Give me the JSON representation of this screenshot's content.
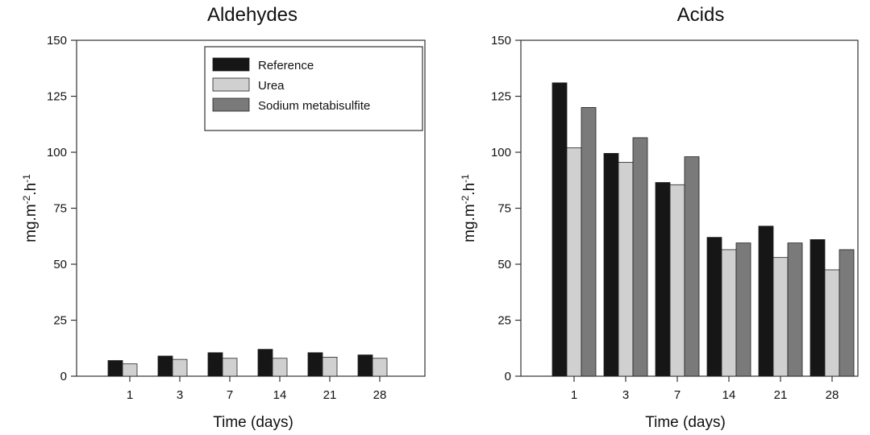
{
  "chart_data": [
    {
      "type": "bar",
      "title": "Aldehydes",
      "xlabel": "Time (days)",
      "ylabel": "mg.m",
      "ylabel_sup1": "-2",
      "ylabel_mid": ".h",
      "ylabel_sup2": "-1",
      "categories": [
        "1",
        "3",
        "7",
        "14",
        "21",
        "28"
      ],
      "ylim": [
        0,
        150
      ],
      "yticks": [
        "0",
        "25",
        "50",
        "75",
        "100",
        "125",
        "150"
      ],
      "legend_position": "top-right",
      "series": [
        {
          "name": "Reference",
          "color": "#161616",
          "values": [
            7,
            9,
            10.5,
            12,
            10.5,
            9.5
          ]
        },
        {
          "name": "Urea",
          "color": "#d0d0d0",
          "values": [
            5.5,
            7.5,
            8,
            8,
            8.5,
            8
          ]
        },
        {
          "name": "Sodium metabisulfite",
          "color": "#7a7a7a",
          "values": [
            null,
            null,
            null,
            null,
            null,
            null
          ]
        }
      ]
    },
    {
      "type": "bar",
      "title": "Acids",
      "xlabel": "Time (days)",
      "ylabel": "mg.m",
      "ylabel_sup1": "-2",
      "ylabel_mid": ".h",
      "ylabel_sup2": "-1",
      "categories": [
        "1",
        "3",
        "7",
        "14",
        "21",
        "28"
      ],
      "ylim": [
        0,
        150
      ],
      "yticks": [
        "0",
        "25",
        "50",
        "75",
        "100",
        "125",
        "150"
      ],
      "series": [
        {
          "name": "Reference",
          "color": "#161616",
          "values": [
            131,
            99.5,
            86.5,
            62,
            67,
            61
          ]
        },
        {
          "name": "Urea",
          "color": "#d0d0d0",
          "values": [
            102,
            95.5,
            85.5,
            56.5,
            53,
            47.5
          ]
        },
        {
          "name": "Sodium metabisulfite",
          "color": "#7a7a7a",
          "values": [
            120,
            106.5,
            98,
            59.5,
            59.5,
            56.5
          ]
        }
      ]
    }
  ]
}
